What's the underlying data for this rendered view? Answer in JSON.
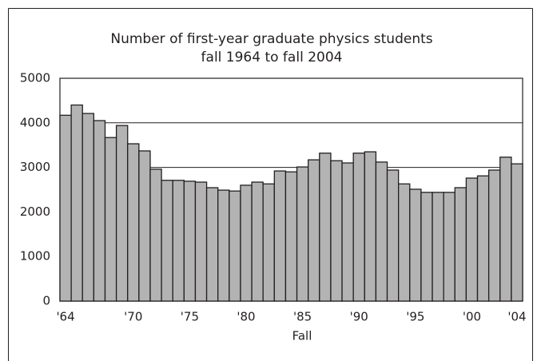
{
  "chart_data": {
    "type": "bar",
    "title": "Number of first-year graduate physics students",
    "subtitle": "fall 1964 to fall 2004",
    "x_label": "Fall",
    "categories": [
      "'64",
      null,
      null,
      null,
      null,
      null,
      "'70",
      null,
      null,
      null,
      null,
      "'75",
      null,
      null,
      null,
      null,
      "'80",
      null,
      null,
      null,
      null,
      "'85",
      null,
      null,
      null,
      null,
      "'90",
      null,
      null,
      null,
      null,
      "'95",
      null,
      null,
      null,
      null,
      "'00",
      null,
      null,
      null,
      "'04"
    ],
    "values": [
      4170,
      4400,
      4210,
      4050,
      3670,
      3940,
      3530,
      3370,
      2960,
      2710,
      2710,
      2690,
      2670,
      2545,
      2490,
      2470,
      2600,
      2670,
      2630,
      2920,
      2900,
      3010,
      3170,
      3320,
      3150,
      3100,
      3320,
      3350,
      3120,
      2940,
      2630,
      2510,
      2440,
      2440,
      2440,
      2545,
      2760,
      2810,
      2940,
      3230,
      3080
    ],
    "color": "#b3b3b3",
    "ylim": [
      0,
      5000
    ],
    "yticks": [
      0,
      1000,
      2000,
      3000,
      4000,
      5000
    ],
    "grid": true
  }
}
